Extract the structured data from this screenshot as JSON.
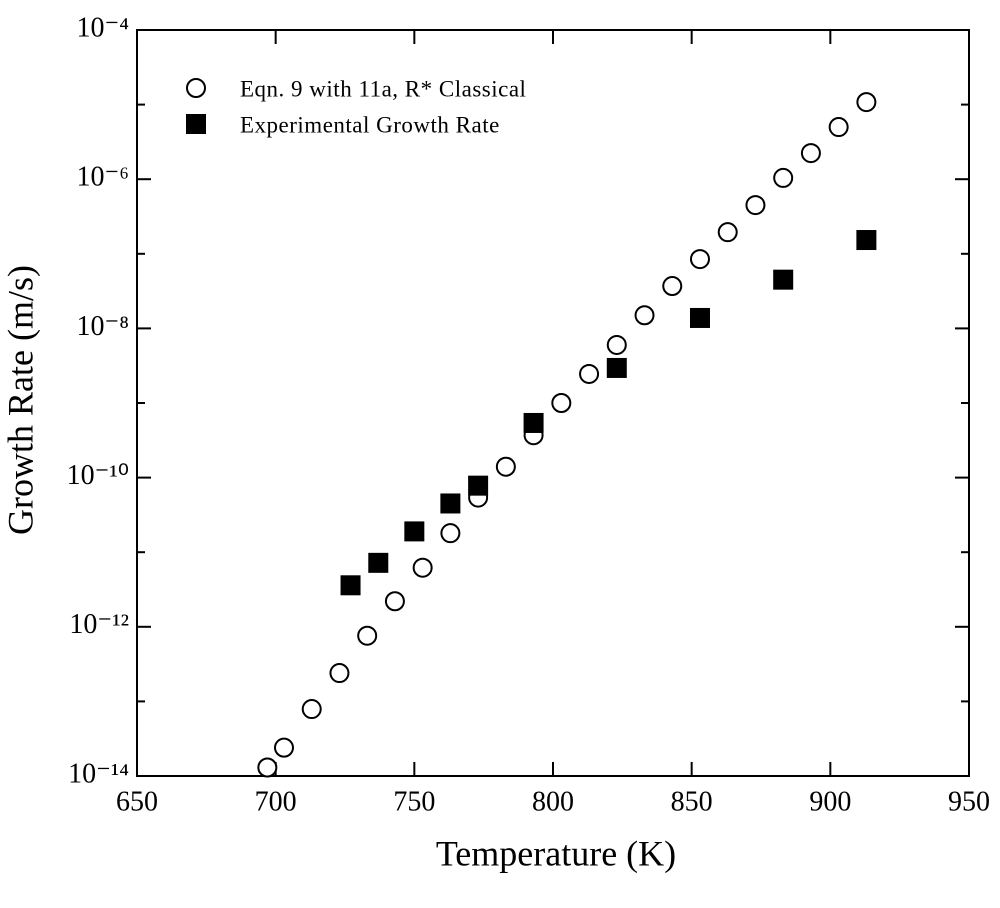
{
  "chart_data": {
    "type": "scatter",
    "xlabel": "Temperature (K)",
    "ylabel": "Growth Rate (m/s)",
    "xlim": [
      650,
      950
    ],
    "xticks": [
      650,
      700,
      750,
      800,
      850,
      900,
      950
    ],
    "ylim": [
      1e-14,
      0.0001
    ],
    "yscale": "log",
    "yticks": [
      {
        "value": 1e-14,
        "label": "10⁻¹⁴"
      },
      {
        "value": 1e-12,
        "label": "10⁻¹²"
      },
      {
        "value": 1e-10,
        "label": "10⁻¹⁰"
      },
      {
        "value": 1e-08,
        "label": "10⁻⁸"
      },
      {
        "value": 1e-06,
        "label": "10⁻⁶"
      },
      {
        "value": 0.0001,
        "label": "10⁻⁴"
      }
    ],
    "yminorticks": [
      1e-13,
      1e-11,
      1e-09,
      1e-07,
      1e-05
    ],
    "legend": "upper left",
    "series": [
      {
        "name": "Eqn. 9 with 11a, R* Classical",
        "marker": "open-circle",
        "color": "#000000",
        "x": [
          697,
          703,
          713,
          723,
          733,
          743,
          753,
          763,
          773,
          783,
          793,
          803,
          813,
          823,
          833,
          843,
          853,
          863,
          873,
          883,
          893,
          903,
          913
        ],
        "values": [
          1.3e-14,
          2.4e-14,
          7.9e-14,
          2.4e-13,
          7.6e-13,
          2.2e-12,
          6.2e-12,
          1.8e-11,
          5.4e-11,
          1.4e-10,
          3.7e-10,
          1e-09,
          2.45e-09,
          6e-09,
          1.5e-08,
          3.7e-08,
          8.5e-08,
          1.95e-07,
          4.5e-07,
          1.04e-06,
          2.24e-06,
          5e-06,
          1.08e-05
        ]
      },
      {
        "name": "Experimental Growth Rate",
        "marker": "filled-square",
        "color": "#000000",
        "x": [
          727,
          737,
          750,
          763,
          773,
          793,
          823,
          853,
          883,
          913
        ],
        "values": [
          3.6e-12,
          7.2e-12,
          1.9e-11,
          4.5e-11,
          7.8e-11,
          5.4e-10,
          2.95e-09,
          1.38e-08,
          4.5e-08,
          1.53e-07
        ]
      }
    ]
  }
}
